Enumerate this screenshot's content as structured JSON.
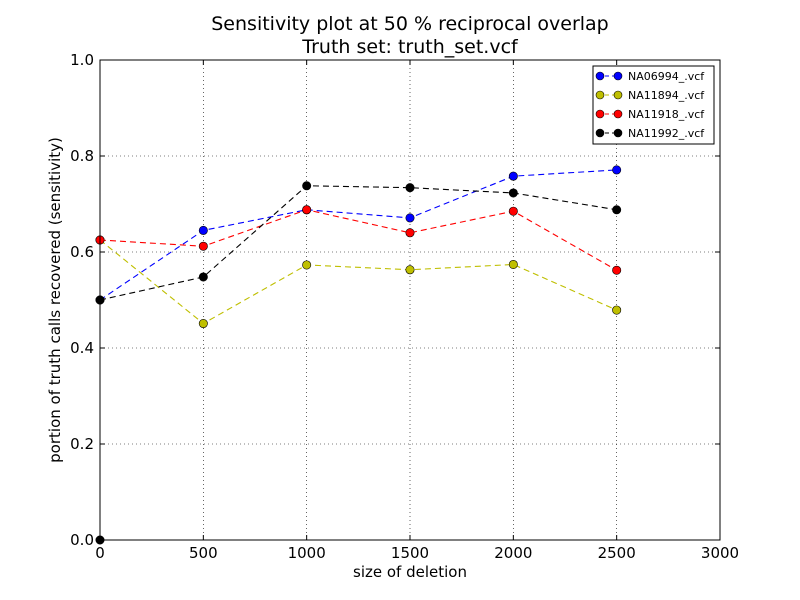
{
  "chart_data": {
    "type": "line",
    "title": "Sensitivity plot at 50 % reciprocal overlap",
    "subtitle": "Truth set: truth_set.vcf",
    "xlabel": "size of deletion",
    "ylabel": "portion of truth calls recovered (sensitivity)",
    "xlim": [
      0,
      3000
    ],
    "ylim": [
      0.0,
      1.0
    ],
    "xticks": [
      0,
      500,
      1000,
      1500,
      2000,
      2500,
      3000
    ],
    "xtick_labels": [
      "0",
      "500",
      "1000",
      "1500",
      "2000",
      "2500",
      "3000"
    ],
    "yticks": [
      0.0,
      0.2,
      0.4,
      0.6,
      0.8,
      1.0
    ],
    "ytick_labels": [
      "0.0",
      "0.2",
      "0.4",
      "0.6",
      "0.8",
      "1.0"
    ],
    "grid": true,
    "legend_position": "top-right",
    "x": [
      0,
      500,
      1000,
      1500,
      2000,
      2500
    ],
    "series": [
      {
        "name": "NA06994_.vcf",
        "color": "#0000ff",
        "values": [
          0.5,
          0.645,
          0.688,
          0.671,
          0.758,
          0.771
        ]
      },
      {
        "name": "NA11894_.vcf",
        "color": "#bfbf00",
        "values": [
          0.625,
          0.451,
          0.573,
          0.563,
          0.574,
          0.479
        ]
      },
      {
        "name": "NA11918_.vcf",
        "color": "#ff0000",
        "values": [
          0.625,
          0.612,
          0.688,
          0.64,
          0.685,
          0.562
        ]
      },
      {
        "name": "NA11992_.vcf",
        "color": "#000000",
        "values": [
          0.5,
          0.548,
          0.738,
          0.734,
          0.723,
          0.688
        ]
      }
    ],
    "extra_points": [
      {
        "series": "NA11992_.vcf",
        "x": 0,
        "y": 0.0
      }
    ]
  }
}
